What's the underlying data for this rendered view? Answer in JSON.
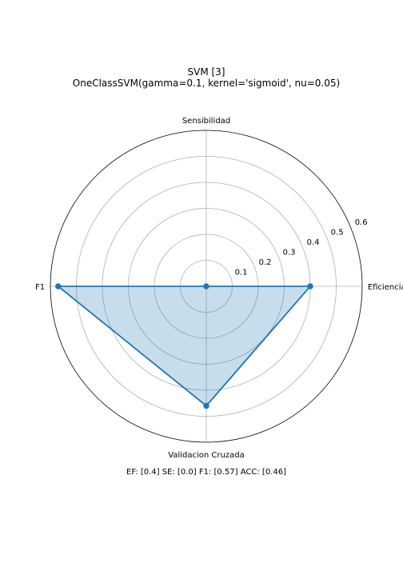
{
  "chart_data": {
    "type": "radar",
    "title": "SVM [3]",
    "subtitle": "OneClassSVM(gamma=0.1, kernel='sigmoid', nu=0.05)",
    "categories": [
      "Eficiencia",
      "Sensibilidad",
      "F1",
      "Validacion Cruzada"
    ],
    "values": [
      0.4,
      0.0,
      0.57,
      0.46
    ],
    "rlim": [
      0,
      0.6
    ],
    "rticks": [
      0.1,
      0.2,
      0.3,
      0.4,
      0.5,
      0.6
    ],
    "rtick_labels": [
      "0.1",
      "0.2",
      "0.3",
      "0.4",
      "0.5",
      "0.6"
    ],
    "grid": true,
    "line_color": "#1f77b4",
    "fill_color": "#1f77b4",
    "caption": "EF: [0.4] SE: [0.0] F1: [0.57] ACC: [0.46]"
  }
}
